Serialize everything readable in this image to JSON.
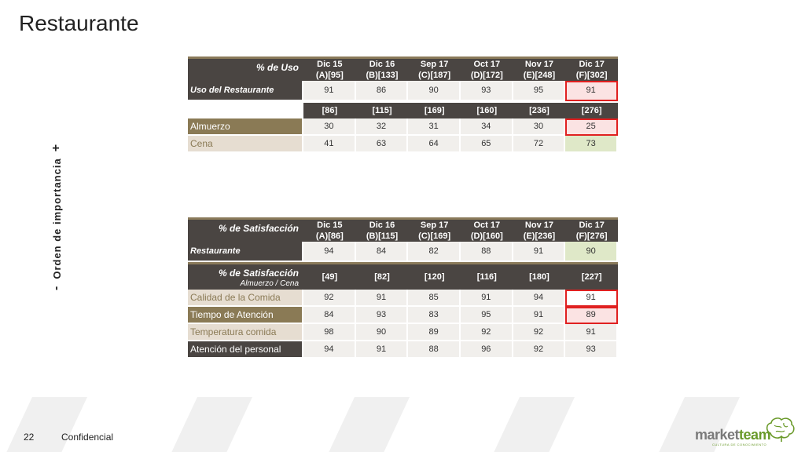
{
  "page": {
    "title": "Restaurante"
  },
  "side_label": {
    "minus": "-",
    "text": "Orden de importancia",
    "plus": "+"
  },
  "colors": {
    "header_dark": "#4a4542",
    "row_dark": "#8a7a55",
    "row_light": "#e6ddd1",
    "highlight_green": "#dfe8c8",
    "highlight_red": "#e02020"
  },
  "uso": {
    "header_label": "% de Uso",
    "columns": [
      {
        "l1": "Dic 15",
        "l2": "(A)[95]"
      },
      {
        "l1": "Dic 16",
        "l2": "(B)[133]"
      },
      {
        "l1": "Sep 17",
        "l2": "(C)[187]"
      },
      {
        "l1": "Oct 17",
        "l2": "(D)[172]"
      },
      {
        "l1": "Nov 17",
        "l2": "(E)[248]"
      },
      {
        "l1": "Dic 17",
        "l2": "(F)[302]"
      }
    ],
    "main_row": {
      "label": "Uso del Restaurante",
      "values": [
        "91",
        "86",
        "90",
        "93",
        "95",
        "91"
      ]
    },
    "bases": [
      "[86]",
      "[115]",
      "[169]",
      "[160]",
      "[236]",
      "[276]"
    ],
    "rows": [
      {
        "label": "Almuerzo",
        "values": [
          "30",
          "32",
          "31",
          "34",
          "30",
          "25"
        ]
      },
      {
        "label": "Cena",
        "values": [
          "41",
          "63",
          "64",
          "65",
          "72",
          "73"
        ]
      }
    ]
  },
  "satis": {
    "header_label": "% de Satisfacción",
    "columns": [
      {
        "l1": "Dic 15",
        "l2": "(A)[86]"
      },
      {
        "l1": "Dic 16",
        "l2": "(B)[115]"
      },
      {
        "l1": "Sep 17",
        "l2": "(C)[169]"
      },
      {
        "l1": "Oct 17",
        "l2": "(D)[160]"
      },
      {
        "l1": "Nov 17",
        "l2": "(E)[236]"
      },
      {
        "l1": "Dic 17",
        "l2": "(F)[276]"
      }
    ],
    "main_row": {
      "label": "Restaurante",
      "values": [
        "94",
        "84",
        "82",
        "88",
        "91",
        "90"
      ]
    },
    "sub_header": {
      "label": "% de Satisfacción",
      "sublabel": "Almuerzo / Cena",
      "bases": [
        "[49]",
        "[82]",
        "[120]",
        "[116]",
        "[180]",
        "[227]"
      ]
    },
    "rows": [
      {
        "label": "Calidad de la Comida",
        "values": [
          "92",
          "91",
          "85",
          "91",
          "94",
          "91"
        ]
      },
      {
        "label": "Tiempo de Atención",
        "values": [
          "84",
          "93",
          "83",
          "95",
          "91",
          "89"
        ]
      },
      {
        "label": "Temperatura comida",
        "values": [
          "98",
          "90",
          "89",
          "92",
          "92",
          "91"
        ]
      },
      {
        "label": "Atención del personal",
        "values": [
          "94",
          "91",
          "88",
          "96",
          "92",
          "93"
        ]
      }
    ]
  },
  "footer": {
    "page_number": "22",
    "confidential": "Confidencial"
  },
  "logo": {
    "part1": "market",
    "part2": "team",
    "tagline": "CULTURA DE CONOCIMIENTO"
  }
}
